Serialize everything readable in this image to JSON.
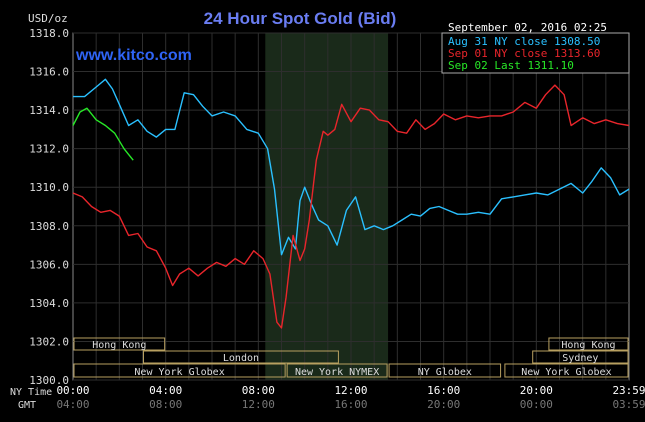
{
  "chart_data": {
    "type": "line",
    "title": "24 Hour Spot Gold (Bid)",
    "watermark": "www.kitco.com",
    "timestamp": "September 02, 2016 02:25",
    "ylabel": "USD/oz",
    "ylim": [
      1300,
      1318
    ],
    "yticks": [
      "1318.0",
      "1316.0",
      "1314.0",
      "1312.0",
      "1310.0",
      "1308.0",
      "1306.0",
      "1304.0",
      "1302.0",
      "1300.0"
    ],
    "xlim": [
      0,
      24
    ],
    "ny_time_label": "NY Time",
    "gmt_label": "GMT",
    "xticks_ny": [
      "00:00",
      "04:00",
      "08:00",
      "12:00",
      "16:00",
      "20:00",
      "23:59"
    ],
    "xticks_gmt": [
      "04:00",
      "08:00",
      "12:00",
      "16:00",
      "20:00",
      "00:00",
      "03:59"
    ],
    "shaded_hours": [
      8.3,
      13.6
    ],
    "legend": [
      {
        "label": "Aug 31 NY close 1308.50",
        "color": "#2ac0ff"
      },
      {
        "label": "Sep 01 NY close 1313.60",
        "color": "#e8252b"
      },
      {
        "label": "Sep 02 Last 1311.10",
        "color": "#27e827"
      }
    ],
    "sessions": [
      {
        "name": "Hong Kong",
        "start": 0,
        "end": 4
      },
      {
        "name": "London",
        "start": 3,
        "end": 11.5
      },
      {
        "name": "New York Globex",
        "start": 0,
        "end": 9.2
      },
      {
        "name": "New York NYMEX",
        "start": 9.2,
        "end": 13.6
      },
      {
        "name": "NY Globex",
        "start": 13.6,
        "end": 18.5
      },
      {
        "name": "Hong Kong",
        "start": 20.5,
        "end": 24
      },
      {
        "name": "Sydney",
        "start": 19.8,
        "end": 24
      },
      {
        "name": "New York Globex",
        "start": 18.6,
        "end": 24
      }
    ],
    "series": [
      {
        "name": "Aug 31",
        "color": "#2ac0ff",
        "x": [
          0,
          0.5,
          1,
          1.4,
          1.7,
          2,
          2.4,
          2.8,
          3.2,
          3.6,
          4,
          4.4,
          4.8,
          5.2,
          5.6,
          6,
          6.5,
          7,
          7.5,
          8,
          8.4,
          8.7,
          9,
          9.3,
          9.6,
          9.8,
          10,
          10.3,
          10.6,
          11,
          11.4,
          11.8,
          12.2,
          12.6,
          13,
          13.4,
          13.8,
          14.2,
          14.6,
          15,
          15.4,
          15.8,
          16.2,
          16.6,
          17,
          17.5,
          18,
          18.5,
          19,
          19.5,
          20,
          20.5,
          21,
          21.5,
          22,
          22.4,
          22.8,
          23.2,
          23.6,
          24
        ],
        "y": [
          1314.7,
          1314.7,
          1315.2,
          1315.6,
          1315.1,
          1314.3,
          1313.2,
          1313.5,
          1312.9,
          1312.6,
          1313.0,
          1313.0,
          1314.9,
          1314.8,
          1314.2,
          1313.7,
          1313.9,
          1313.7,
          1313.0,
          1312.8,
          1312.0,
          1309.9,
          1306.5,
          1307.4,
          1306.8,
          1309.3,
          1310.0,
          1309.1,
          1308.3,
          1308.0,
          1307.0,
          1308.8,
          1309.5,
          1307.8,
          1308.0,
          1307.8,
          1308.0,
          1308.3,
          1308.6,
          1308.5,
          1308.9,
          1309.0,
          1308.8,
          1308.6,
          1308.6,
          1308.7,
          1308.6,
          1309.4,
          1309.5,
          1309.6,
          1309.7,
          1309.6,
          1309.9,
          1310.2,
          1309.7,
          1310.3,
          1311.0,
          1310.5,
          1309.6,
          1309.9
        ]
      },
      {
        "name": "Sep 01",
        "color": "#e8252b",
        "x": [
          0,
          0.4,
          0.8,
          1.2,
          1.6,
          2,
          2.4,
          2.8,
          3.2,
          3.6,
          4,
          4.3,
          4.6,
          5,
          5.4,
          5.8,
          6.2,
          6.6,
          7,
          7.4,
          7.8,
          8.2,
          8.5,
          8.8,
          9,
          9.2,
          9.5,
          9.8,
          10,
          10.2,
          10.5,
          10.8,
          11,
          11.3,
          11.6,
          12,
          12.4,
          12.8,
          13.2,
          13.6,
          14,
          14.4,
          14.8,
          15.2,
          15.6,
          16,
          16.5,
          17,
          17.5,
          18,
          18.5,
          19,
          19.5,
          20,
          20.4,
          20.8,
          21.2,
          21.5,
          22,
          22.5,
          23,
          23.5,
          24
        ],
        "y": [
          1309.7,
          1309.5,
          1309.0,
          1308.7,
          1308.8,
          1308.5,
          1307.5,
          1307.6,
          1306.9,
          1306.7,
          1305.8,
          1304.9,
          1305.5,
          1305.8,
          1305.4,
          1305.8,
          1306.1,
          1305.9,
          1306.3,
          1306.0,
          1306.7,
          1306.3,
          1305.5,
          1303.0,
          1302.7,
          1304.3,
          1307.5,
          1306.2,
          1306.8,
          1308.3,
          1311.4,
          1312.9,
          1312.7,
          1313.0,
          1314.3,
          1313.4,
          1314.1,
          1314.0,
          1313.5,
          1313.4,
          1312.9,
          1312.8,
          1313.5,
          1313.0,
          1313.3,
          1313.8,
          1313.5,
          1313.7,
          1313.6,
          1313.7,
          1313.7,
          1313.9,
          1314.4,
          1314.1,
          1314.8,
          1315.3,
          1314.8,
          1313.2,
          1313.6,
          1313.3,
          1313.5,
          1313.3,
          1313.2
        ]
      },
      {
        "name": "Sep 02",
        "color": "#27e827",
        "x": [
          0,
          0.3,
          0.6,
          1,
          1.4,
          1.8,
          2.2,
          2.6
        ],
        "y": [
          1313.2,
          1313.9,
          1314.1,
          1313.5,
          1313.2,
          1312.8,
          1312.0,
          1311.4
        ]
      }
    ]
  }
}
